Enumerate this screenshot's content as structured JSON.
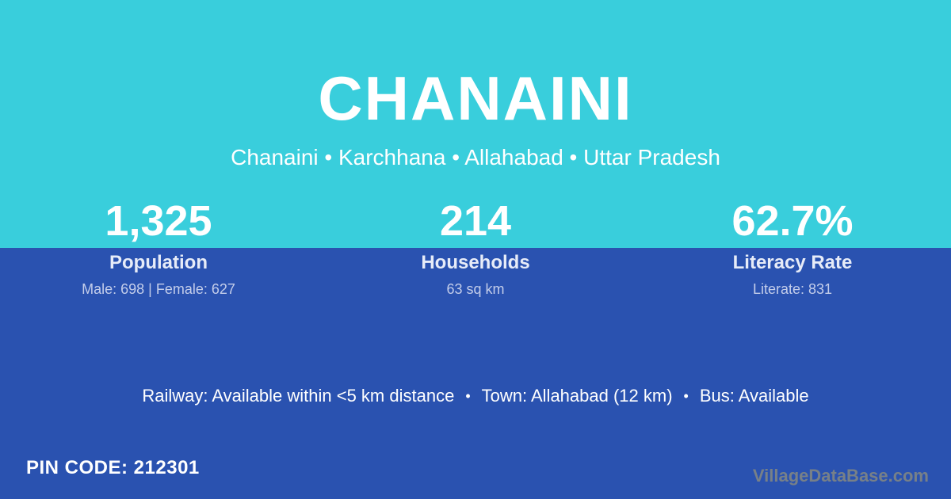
{
  "header": {
    "title": "CHANAINI",
    "subtitle": "Chanaini • Karchhana • Allahabad • Uttar Pradesh"
  },
  "stats": [
    {
      "value": "1,325",
      "label": "Population",
      "detail": "Male: 698 | Female: 627"
    },
    {
      "value": "214",
      "label": "Households",
      "detail": "63 sq km"
    },
    {
      "value": "62.7%",
      "label": "Literacy Rate",
      "detail": "Literate: 831"
    }
  ],
  "amenities": {
    "railway": "Railway: Available within <5 km distance",
    "town": "Town: Allahabad (12 km)",
    "bus": "Bus: Available",
    "separator": "•"
  },
  "footer": {
    "pin_code": "PIN CODE: 212301",
    "watermark": "VillageDataBase.com"
  },
  "colors": {
    "top_background": "#39CEDC",
    "bottom_background": "#2A52B0",
    "text_primary": "#FFFFFF",
    "text_label": "#E7ECF8",
    "text_muted": "#C3CDEA",
    "watermark": "#778088"
  }
}
